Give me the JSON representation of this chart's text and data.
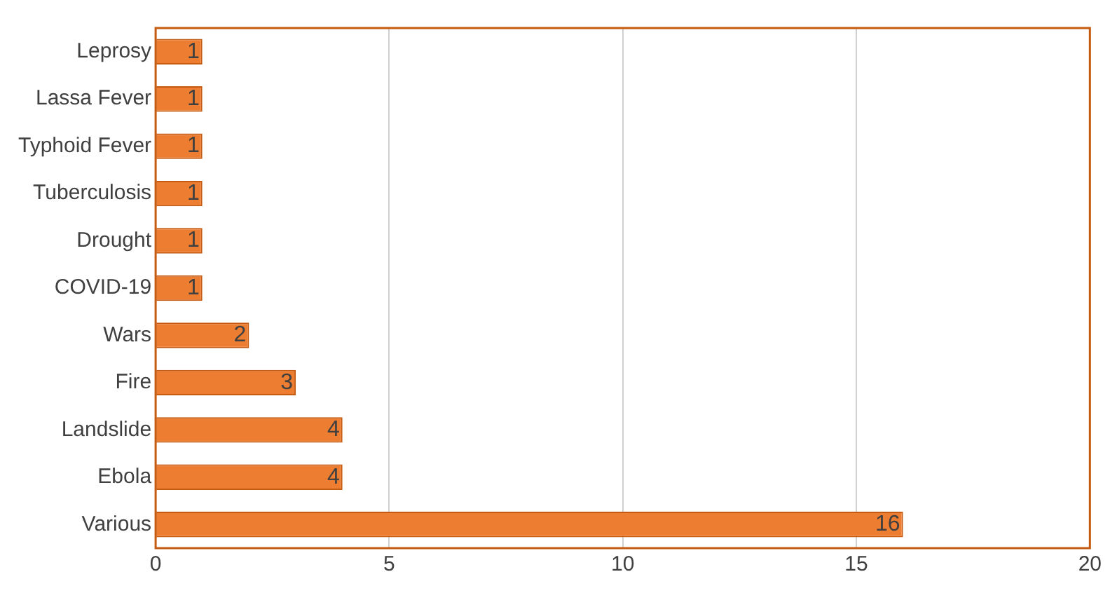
{
  "chart_data": {
    "type": "bar",
    "orientation": "horizontal",
    "categories": [
      "Leprosy",
      "Lassa Fever",
      "Typhoid Fever",
      "Tuberculosis",
      "Drought",
      "COVID-19",
      "Wars",
      "Fire",
      "Landslide",
      "Ebola",
      "Various"
    ],
    "values": [
      1,
      1,
      1,
      1,
      1,
      1,
      2,
      3,
      4,
      4,
      16
    ],
    "color": "#ed7d31",
    "xlim": [
      0,
      20
    ],
    "xticks": [
      0,
      5,
      10,
      15,
      20
    ],
    "grid": "x",
    "data_labels": true,
    "legend": false
  }
}
